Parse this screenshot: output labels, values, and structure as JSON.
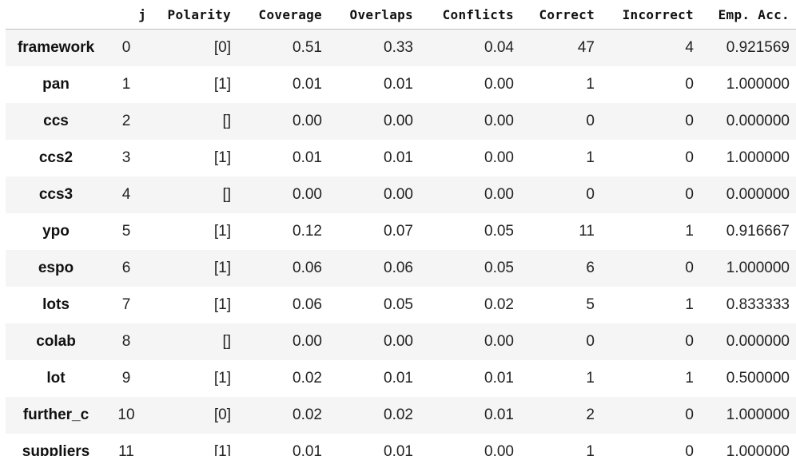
{
  "table": {
    "columns": {
      "index": "",
      "j": "j",
      "polarity": "Polarity",
      "coverage": "Coverage",
      "overlaps": "Overlaps",
      "conflicts": "Conflicts",
      "correct": "Correct",
      "incorrect": "Incorrect",
      "emp_acc": "Emp. Acc."
    },
    "rows": [
      {
        "name": "framework",
        "j": "0",
        "polarity": "[0]",
        "coverage": "0.51",
        "overlaps": "0.33",
        "conflicts": "0.04",
        "correct": "47",
        "incorrect": "4",
        "emp_acc": "0.921569"
      },
      {
        "name": "pan",
        "j": "1",
        "polarity": "[1]",
        "coverage": "0.01",
        "overlaps": "0.01",
        "conflicts": "0.00",
        "correct": "1",
        "incorrect": "0",
        "emp_acc": "1.000000"
      },
      {
        "name": "ccs",
        "j": "2",
        "polarity": "[]",
        "coverage": "0.00",
        "overlaps": "0.00",
        "conflicts": "0.00",
        "correct": "0",
        "incorrect": "0",
        "emp_acc": "0.000000"
      },
      {
        "name": "ccs2",
        "j": "3",
        "polarity": "[1]",
        "coverage": "0.01",
        "overlaps": "0.01",
        "conflicts": "0.00",
        "correct": "1",
        "incorrect": "0",
        "emp_acc": "1.000000"
      },
      {
        "name": "ccs3",
        "j": "4",
        "polarity": "[]",
        "coverage": "0.00",
        "overlaps": "0.00",
        "conflicts": "0.00",
        "correct": "0",
        "incorrect": "0",
        "emp_acc": "0.000000"
      },
      {
        "name": "ypo",
        "j": "5",
        "polarity": "[1]",
        "coverage": "0.12",
        "overlaps": "0.07",
        "conflicts": "0.05",
        "correct": "11",
        "incorrect": "1",
        "emp_acc": "0.916667"
      },
      {
        "name": "espo",
        "j": "6",
        "polarity": "[1]",
        "coverage": "0.06",
        "overlaps": "0.06",
        "conflicts": "0.05",
        "correct": "6",
        "incorrect": "0",
        "emp_acc": "1.000000"
      },
      {
        "name": "lots",
        "j": "7",
        "polarity": "[1]",
        "coverage": "0.06",
        "overlaps": "0.05",
        "conflicts": "0.02",
        "correct": "5",
        "incorrect": "1",
        "emp_acc": "0.833333"
      },
      {
        "name": "colab",
        "j": "8",
        "polarity": "[]",
        "coverage": "0.00",
        "overlaps": "0.00",
        "conflicts": "0.00",
        "correct": "0",
        "incorrect": "0",
        "emp_acc": "0.000000"
      },
      {
        "name": "lot",
        "j": "9",
        "polarity": "[1]",
        "coverage": "0.02",
        "overlaps": "0.01",
        "conflicts": "0.01",
        "correct": "1",
        "incorrect": "1",
        "emp_acc": "0.500000"
      },
      {
        "name": "further_c",
        "j": "10",
        "polarity": "[0]",
        "coverage": "0.02",
        "overlaps": "0.02",
        "conflicts": "0.01",
        "correct": "2",
        "incorrect": "0",
        "emp_acc": "1.000000"
      },
      {
        "name": "suppliers",
        "j": "11",
        "polarity": "[1]",
        "coverage": "0.01",
        "overlaps": "0.01",
        "conflicts": "0.00",
        "correct": "1",
        "incorrect": "0",
        "emp_acc": "1.000000"
      }
    ]
  }
}
